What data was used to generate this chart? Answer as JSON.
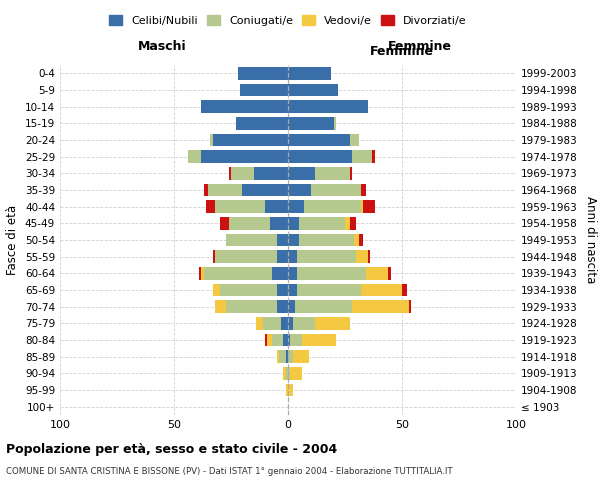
{
  "age_groups": [
    "100+",
    "95-99",
    "90-94",
    "85-89",
    "80-84",
    "75-79",
    "70-74",
    "65-69",
    "60-64",
    "55-59",
    "50-54",
    "45-49",
    "40-44",
    "35-39",
    "30-34",
    "25-29",
    "20-24",
    "15-19",
    "10-14",
    "5-9",
    "0-4"
  ],
  "birth_years": [
    "≤ 1903",
    "1904-1908",
    "1909-1913",
    "1914-1918",
    "1919-1923",
    "1924-1928",
    "1929-1933",
    "1934-1938",
    "1939-1943",
    "1944-1948",
    "1949-1953",
    "1954-1958",
    "1959-1963",
    "1964-1968",
    "1969-1973",
    "1974-1978",
    "1979-1983",
    "1984-1988",
    "1989-1993",
    "1994-1998",
    "1999-2003"
  ],
  "maschi": {
    "celibi": [
      0,
      0,
      0,
      1,
      2,
      3,
      5,
      5,
      7,
      5,
      5,
      8,
      10,
      20,
      15,
      38,
      33,
      23,
      38,
      21,
      22
    ],
    "coniugati": [
      0,
      0,
      1,
      3,
      5,
      8,
      22,
      25,
      30,
      27,
      22,
      18,
      22,
      15,
      10,
      6,
      1,
      0,
      0,
      0,
      0
    ],
    "vedovi": [
      0,
      1,
      1,
      1,
      2,
      3,
      5,
      3,
      1,
      0,
      0,
      0,
      0,
      0,
      0,
      0,
      0,
      0,
      0,
      0,
      0
    ],
    "divorziati": [
      0,
      0,
      0,
      0,
      1,
      0,
      0,
      0,
      1,
      1,
      0,
      4,
      4,
      2,
      1,
      0,
      0,
      0,
      0,
      0,
      0
    ]
  },
  "femmine": {
    "nubili": [
      0,
      0,
      0,
      0,
      1,
      2,
      3,
      4,
      4,
      4,
      5,
      5,
      7,
      10,
      12,
      28,
      27,
      20,
      35,
      22,
      19
    ],
    "coniugate": [
      0,
      0,
      1,
      2,
      5,
      10,
      25,
      28,
      30,
      26,
      24,
      20,
      25,
      22,
      15,
      9,
      4,
      1,
      0,
      0,
      0
    ],
    "vedove": [
      0,
      2,
      5,
      7,
      15,
      15,
      25,
      18,
      10,
      5,
      2,
      2,
      1,
      0,
      0,
      0,
      0,
      0,
      0,
      0,
      0
    ],
    "divorziate": [
      0,
      0,
      0,
      0,
      0,
      0,
      1,
      2,
      1,
      1,
      2,
      3,
      5,
      2,
      1,
      1,
      0,
      0,
      0,
      0,
      0
    ]
  },
  "colors": {
    "celibi": "#3a6ea8",
    "coniugati": "#b5c98e",
    "vedovi": "#f5c842",
    "divorziati": "#cc1111"
  },
  "xlim": 100,
  "title": "Popolazione per età, sesso e stato civile - 2004",
  "subtitle": "COMUNE DI SANTA CRISTINA E BISSONE (PV) - Dati ISTAT 1° gennaio 2004 - Elaborazione TUTTITALIA.IT",
  "ylabel_left": "Fasce di età",
  "ylabel_right": "Anni di nascita",
  "legend_labels": [
    "Celibi/Nubili",
    "Coniugati/e",
    "Vedovi/e",
    "Divorziati/e"
  ],
  "maschi_label": "Maschi",
  "femmine_label": "Femmine",
  "background_color": "#ffffff",
  "grid_color": "#cccccc"
}
